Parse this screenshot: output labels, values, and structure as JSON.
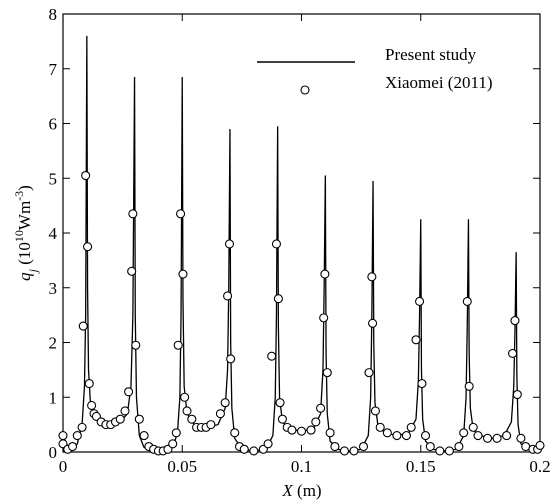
{
  "chart_data": {
    "type": "line",
    "xlabel": {
      "symbol": "X",
      "unit": "(m)"
    },
    "ylabel": {
      "symbol": "q",
      "subscript": "j",
      "unit": "(10",
      "unit_superscript": "10",
      "unit_rest": "Wm",
      "unit_rest_superscript": "-3",
      "close": ")"
    },
    "xlim": [
      0,
      0.2
    ],
    "ylim": [
      0,
      8
    ],
    "xticks": [
      0,
      0.05,
      0.1,
      0.15,
      0.2
    ],
    "yticks": [
      0,
      1,
      2,
      3,
      4,
      5,
      6,
      7,
      8
    ],
    "legend": "top-right",
    "series": [
      {
        "name": "Present study",
        "style": "line",
        "color": "#000000",
        "x": [
          0,
          0.002,
          0.004,
          0.006,
          0.008,
          0.009,
          0.0095,
          0.01,
          0.0103,
          0.0107,
          0.0115,
          0.013,
          0.016,
          0.02,
          0.024,
          0.027,
          0.0285,
          0.0293,
          0.03,
          0.0303,
          0.0308,
          0.032,
          0.034,
          0.04,
          0.046,
          0.048,
          0.049,
          0.0495,
          0.05,
          0.0503,
          0.0508,
          0.052,
          0.055,
          0.06,
          0.065,
          0.068,
          0.069,
          0.0695,
          0.07,
          0.0703,
          0.0708,
          0.072,
          0.075,
          0.08,
          0.085,
          0.088,
          0.089,
          0.0895,
          0.09,
          0.0903,
          0.0908,
          0.092,
          0.095,
          0.1,
          0.105,
          0.108,
          0.109,
          0.1095,
          0.11,
          0.1103,
          0.1108,
          0.112,
          0.115,
          0.12,
          0.125,
          0.128,
          0.129,
          0.1295,
          0.13,
          0.1303,
          0.1308,
          0.132,
          0.135,
          0.14,
          0.145,
          0.148,
          0.149,
          0.1495,
          0.15,
          0.1503,
          0.1508,
          0.152,
          0.155,
          0.16,
          0.165,
          0.168,
          0.169,
          0.1695,
          0.17,
          0.1703,
          0.1708,
          0.172,
          0.175,
          0.18,
          0.185,
          0.188,
          0.189,
          0.1895,
          0.19,
          0.1903,
          0.1908,
          0.192,
          0.195,
          0.2
        ],
        "values": [
          0.3,
          0.1,
          0.05,
          0.15,
          0.5,
          1.2,
          2.5,
          7.6,
          3.0,
          1.5,
          0.9,
          0.7,
          0.55,
          0.5,
          0.55,
          0.7,
          1.2,
          2.5,
          6.85,
          2.5,
          1.0,
          0.3,
          0.08,
          0.02,
          0.08,
          0.35,
          1.0,
          2.5,
          6.85,
          2.8,
          1.2,
          0.7,
          0.5,
          0.45,
          0.5,
          0.8,
          1.5,
          3.0,
          5.9,
          2.0,
          0.8,
          0.25,
          0.05,
          0.02,
          0.05,
          0.3,
          1.0,
          2.5,
          5.95,
          2.3,
          1.0,
          0.55,
          0.42,
          0.38,
          0.42,
          0.7,
          1.5,
          3.0,
          5.05,
          1.8,
          0.7,
          0.2,
          0.05,
          0.02,
          0.05,
          0.3,
          1.0,
          2.5,
          4.95,
          2.0,
          0.9,
          0.5,
          0.35,
          0.3,
          0.35,
          0.6,
          1.3,
          2.5,
          4.25,
          1.5,
          0.6,
          0.2,
          0.05,
          0.02,
          0.05,
          0.3,
          1.0,
          2.3,
          4.25,
          1.8,
          0.8,
          0.4,
          0.3,
          0.25,
          0.3,
          0.55,
          1.2,
          2.2,
          3.65,
          1.4,
          0.5,
          0.15,
          0.05,
          0.02
        ]
      },
      {
        "name": "Xiaomei (2011)",
        "style": "markers",
        "color": "#000000",
        "x": [
          0,
          0,
          0.002,
          0.004,
          0.006,
          0.008,
          0.0085,
          0.0095,
          0.0103,
          0.011,
          0.012,
          0.013,
          0.014,
          0.016,
          0.018,
          0.02,
          0.022,
          0.024,
          0.026,
          0.0275,
          0.0288,
          0.0293,
          0.0305,
          0.032,
          0.034,
          0.036,
          0.038,
          0.04,
          0.042,
          0.044,
          0.046,
          0.0475,
          0.0483,
          0.0493,
          0.0503,
          0.051,
          0.052,
          0.054,
          0.056,
          0.058,
          0.06,
          0.062,
          0.066,
          0.068,
          0.069,
          0.0698,
          0.0703,
          0.072,
          0.074,
          0.076,
          0.08,
          0.084,
          0.086,
          0.0875,
          0.0895,
          0.0903,
          0.091,
          0.092,
          0.094,
          0.096,
          0.1,
          0.104,
          0.106,
          0.108,
          0.1093,
          0.1098,
          0.1108,
          0.112,
          0.114,
          0.118,
          0.122,
          0.126,
          0.1283,
          0.1295,
          0.1298,
          0.131,
          0.133,
          0.136,
          0.14,
          0.144,
          0.146,
          0.148,
          0.1495,
          0.1505,
          0.152,
          0.154,
          0.158,
          0.162,
          0.166,
          0.168,
          0.1695,
          0.1703,
          0.172,
          0.174,
          0.178,
          0.182,
          0.186,
          0.1885,
          0.1895,
          0.1905,
          0.192,
          0.194,
          0.197,
          0.199,
          0.2
        ],
        "values": [
          0.3,
          0.15,
          0.05,
          0.1,
          0.3,
          0.45,
          2.3,
          5.05,
          3.75,
          1.25,
          0.85,
          0.7,
          0.65,
          0.55,
          0.5,
          0.5,
          0.55,
          0.6,
          0.75,
          1.1,
          3.3,
          4.35,
          1.95,
          0.6,
          0.3,
          0.1,
          0.05,
          0.02,
          0.02,
          0.05,
          0.15,
          0.35,
          1.95,
          4.35,
          3.25,
          1.0,
          0.75,
          0.6,
          0.45,
          0.45,
          0.45,
          0.5,
          0.7,
          0.9,
          2.85,
          3.8,
          1.7,
          0.35,
          0.1,
          0.05,
          0.02,
          0.05,
          0.15,
          1.75,
          3.8,
          2.8,
          0.9,
          0.6,
          0.45,
          0.4,
          0.38,
          0.4,
          0.55,
          0.8,
          2.45,
          3.25,
          1.45,
          0.35,
          0.1,
          0.02,
          0.02,
          0.1,
          1.45,
          3.2,
          2.35,
          0.75,
          0.45,
          0.35,
          0.3,
          0.3,
          0.45,
          2.05,
          2.75,
          1.25,
          0.3,
          0.1,
          0.02,
          0.02,
          0.1,
          0.35,
          2.75,
          1.2,
          0.45,
          0.3,
          0.25,
          0.25,
          0.3,
          1.8,
          2.4,
          1.05,
          0.25,
          0.1,
          0.05,
          0.05,
          0.12
        ]
      }
    ]
  }
}
